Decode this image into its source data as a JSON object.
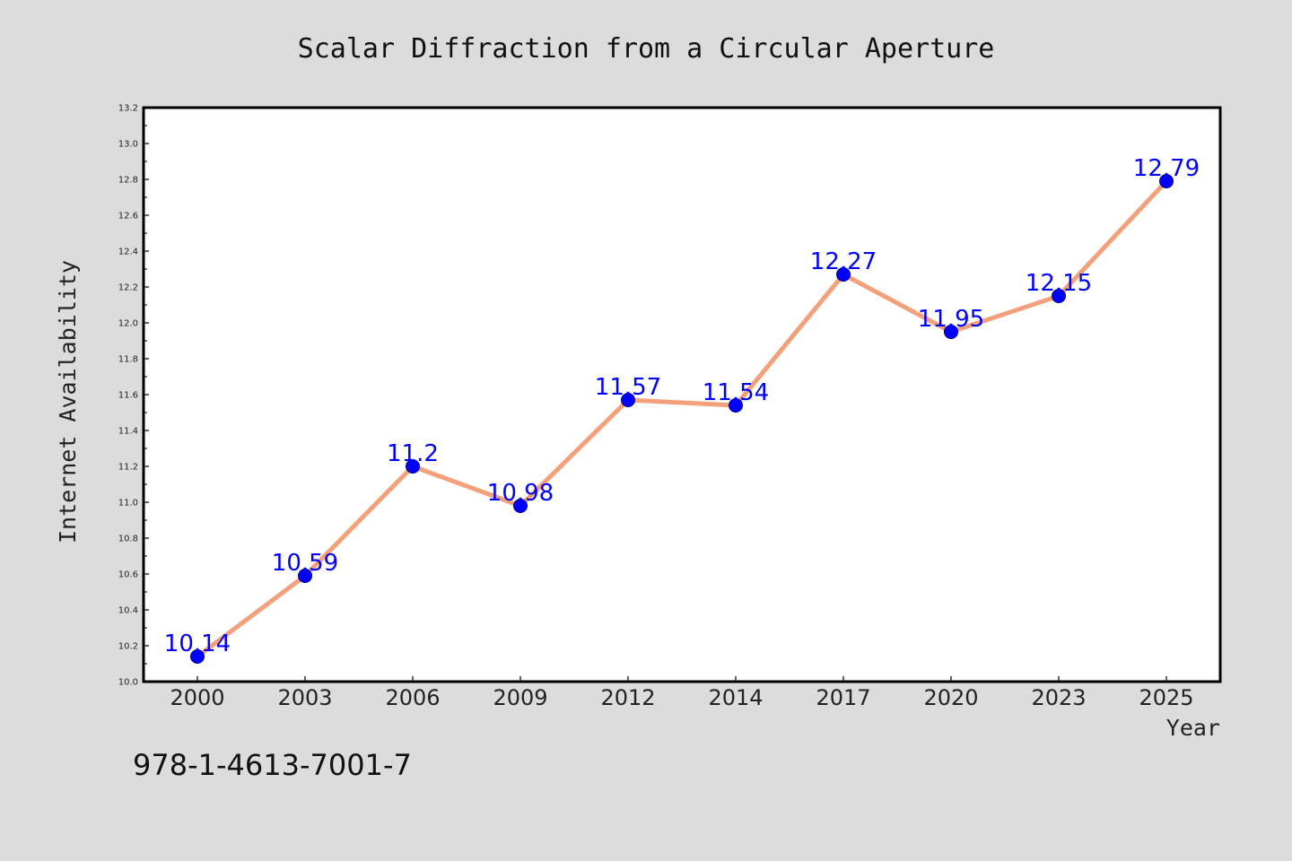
{
  "chart_data": {
    "type": "line",
    "title": "Scalar Diffraction from a Circular Aperture",
    "xlabel": "Year",
    "ylabel": "Internet Availability",
    "categories": [
      "2000",
      "2003",
      "2006",
      "2009",
      "2012",
      "2014",
      "2017",
      "2020",
      "2023",
      "2025"
    ],
    "series": [
      {
        "values": [
          10.14,
          10.59,
          11.2,
          10.98,
          11.57,
          11.54,
          12.27,
          11.95,
          12.15,
          12.79
        ],
        "data_labels": [
          "10.14",
          "10.59",
          "11.2",
          "10.98",
          "11.57",
          "11.54",
          "12.27",
          "11.95",
          "12.15",
          "12.79"
        ],
        "line_color": "#f4a07a",
        "marker_color": "#0000ff"
      }
    ],
    "ylim": [
      10.0,
      13.2
    ],
    "y_ticks": [
      "10.0",
      "10.2",
      "10.4",
      "10.6",
      "10.8",
      "11.0",
      "11.2",
      "11.4",
      "11.6",
      "11.8",
      "12.0",
      "12.2",
      "12.4",
      "12.6",
      "12.8",
      "13.0",
      "13.2"
    ],
    "grid": false,
    "legend": "none"
  },
  "footer": {
    "isbn": "978-1-4613-7001-7"
  },
  "colors": {
    "background": "#dcdcdc",
    "plot_area": "#ffffff",
    "axis": "#000000",
    "label_text": "#0000ff"
  }
}
